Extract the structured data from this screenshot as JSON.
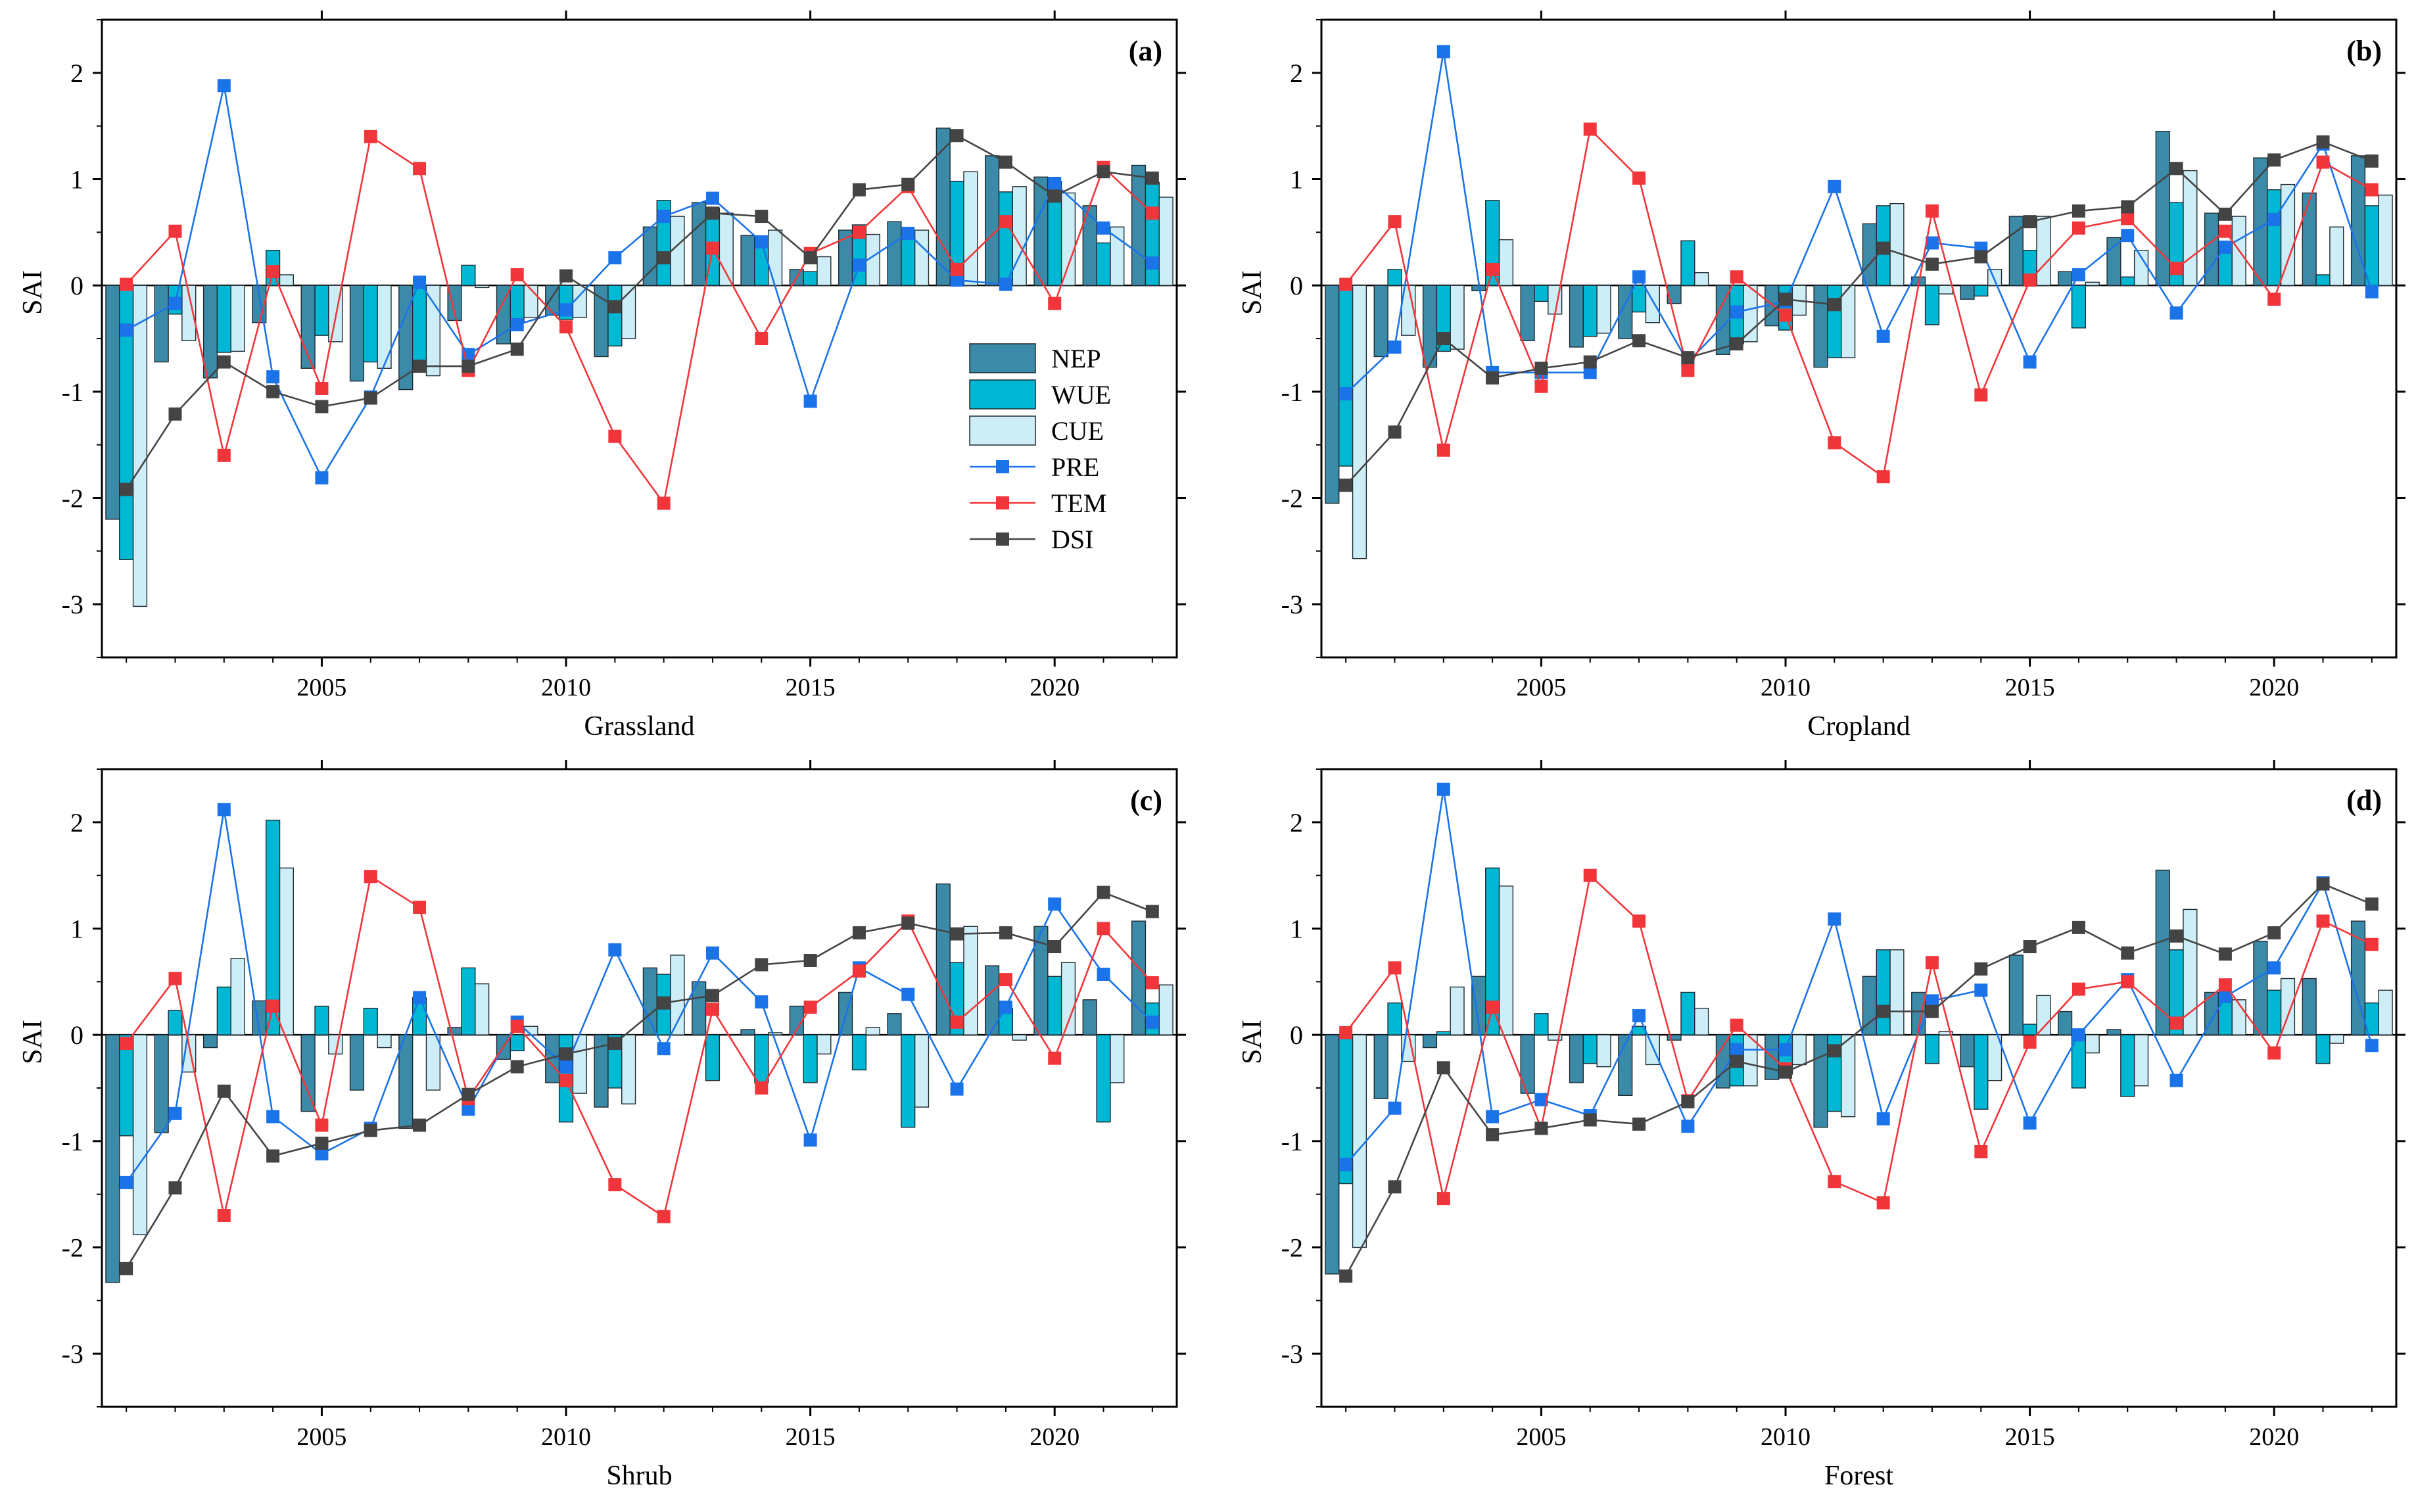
{
  "figure": {
    "legend_labels": [
      "NEP",
      "WUE",
      "CUE",
      "PRE",
      "TEM",
      "DSI"
    ]
  },
  "colors": {
    "NEP": "#3a8aa8",
    "WUE": "#00b8d4",
    "CUE": "#cdeef6",
    "PRE": "#1a73e8",
    "TEM": "#f0363a",
    "DSI": "#444444",
    "bar_edge": "#1f2a30"
  },
  "chart_data": [
    {
      "type": "bar+line",
      "panel": "(a)",
      "xlabel": "Grassland",
      "ylabel": "SAI",
      "xlim": [
        2000.5,
        2022.5
      ],
      "ylim": [
        -3.5,
        2.5
      ],
      "xticks": [
        2005,
        2010,
        2015,
        2020
      ],
      "yticks": [
        -3,
        -2,
        -1,
        0,
        1,
        2
      ],
      "legend_position": "center-right",
      "years": [
        2001,
        2002,
        2003,
        2004,
        2005,
        2006,
        2007,
        2008,
        2009,
        2010,
        2011,
        2012,
        2013,
        2014,
        2015,
        2016,
        2017,
        2018,
        2019,
        2020,
        2021,
        2022
      ],
      "series": [
        {
          "name": "NEP",
          "kind": "bar",
          "values": [
            -2.2,
            -0.72,
            -0.87,
            -0.35,
            -0.78,
            -0.9,
            -0.98,
            -0.33,
            -0.55,
            -0.28,
            -0.67,
            0.55,
            0.78,
            0.47,
            0.15,
            0.52,
            0.6,
            1.48,
            1.22,
            1.02,
            0.75,
            1.13
          ]
        },
        {
          "name": "WUE",
          "kind": "bar",
          "values": [
            -2.58,
            -0.27,
            -0.63,
            0.33,
            -0.47,
            -0.72,
            -0.75,
            0.19,
            -0.35,
            -0.32,
            -0.57,
            0.8,
            0.73,
            0.45,
            0.13,
            0.57,
            0.45,
            0.98,
            0.88,
            0.98,
            0.4,
            0.97
          ]
        },
        {
          "name": "CUE",
          "kind": "bar",
          "values": [
            -3.02,
            -0.52,
            -0.62,
            0.1,
            -0.53,
            -0.78,
            -0.85,
            -0.02,
            -0.3,
            -0.3,
            -0.5,
            0.65,
            0.68,
            0.52,
            0.27,
            0.48,
            0.52,
            1.07,
            0.93,
            0.87,
            0.55,
            0.83
          ]
        },
        {
          "name": "PRE",
          "kind": "line",
          "values": [
            -0.42,
            -0.17,
            1.88,
            -0.86,
            -1.81,
            -1.05,
            0.03,
            -0.65,
            -0.37,
            -0.23,
            0.26,
            0.65,
            0.82,
            0.41,
            -1.09,
            0.19,
            0.49,
            0.05,
            0.01,
            0.96,
            0.54,
            0.21
          ]
        },
        {
          "name": "TEM",
          "kind": "line",
          "values": [
            0.01,
            0.51,
            -1.6,
            0.13,
            -0.97,
            1.4,
            1.1,
            -0.8,
            0.1,
            -0.39,
            -1.42,
            -2.05,
            0.35,
            -0.5,
            0.3,
            0.5,
            0.93,
            0.15,
            0.6,
            -0.17,
            1.11,
            0.68
          ]
        },
        {
          "name": "DSI",
          "kind": "line",
          "values": [
            -1.92,
            -1.21,
            -0.72,
            -1.0,
            -1.14,
            -1.06,
            -0.76,
            -0.76,
            -0.6,
            0.09,
            -0.2,
            0.26,
            0.68,
            0.65,
            0.26,
            0.9,
            0.95,
            1.41,
            1.16,
            0.84,
            1.07,
            1.01
          ]
        }
      ]
    },
    {
      "type": "bar+line",
      "panel": "(b)",
      "xlabel": "Cropland",
      "ylabel": "SAI",
      "xlim": [
        2000.5,
        2022.5
      ],
      "ylim": [
        -3.5,
        2.5
      ],
      "xticks": [
        2005,
        2010,
        2015,
        2020
      ],
      "yticks": [
        -3,
        -2,
        -1,
        0,
        1,
        2
      ],
      "years": [
        2001,
        2002,
        2003,
        2004,
        2005,
        2006,
        2007,
        2008,
        2009,
        2010,
        2011,
        2012,
        2013,
        2014,
        2015,
        2016,
        2017,
        2018,
        2019,
        2020,
        2021,
        2022
      ],
      "series": [
        {
          "name": "NEP",
          "kind": "bar",
          "values": [
            -2.05,
            -0.67,
            -0.77,
            -0.05,
            -0.52,
            -0.58,
            -0.5,
            -0.17,
            -0.65,
            -0.38,
            -0.77,
            0.58,
            0.08,
            -0.13,
            0.65,
            0.13,
            0.45,
            1.45,
            0.68,
            1.2,
            0.87,
            1.22
          ]
        },
        {
          "name": "WUE",
          "kind": "bar",
          "values": [
            -1.7,
            0.15,
            -0.62,
            0.8,
            -0.15,
            -0.48,
            -0.25,
            0.42,
            -0.55,
            -0.42,
            -0.68,
            0.75,
            -0.37,
            -0.1,
            0.33,
            -0.4,
            0.08,
            0.78,
            0.33,
            0.9,
            0.1,
            0.75
          ]
        },
        {
          "name": "CUE",
          "kind": "bar",
          "values": [
            -2.57,
            -0.47,
            -0.6,
            0.43,
            -0.27,
            -0.45,
            -0.35,
            0.12,
            -0.53,
            -0.28,
            -0.68,
            0.77,
            -0.08,
            0.15,
            0.65,
            0.03,
            0.33,
            1.08,
            0.65,
            0.95,
            0.55,
            0.85
          ]
        },
        {
          "name": "PRE",
          "kind": "line",
          "values": [
            -1.02,
            -0.58,
            2.2,
            -0.82,
            -0.82,
            -0.82,
            0.08,
            -0.72,
            -0.25,
            -0.15,
            0.93,
            -0.48,
            0.4,
            0.35,
            -0.72,
            0.1,
            0.47,
            -0.26,
            0.36,
            0.62,
            1.33,
            -0.06
          ]
        },
        {
          "name": "TEM",
          "kind": "line",
          "values": [
            0.01,
            0.6,
            -1.55,
            0.15,
            -0.95,
            1.47,
            1.01,
            -0.8,
            0.08,
            -0.28,
            -1.48,
            -1.8,
            0.7,
            -1.03,
            0.05,
            0.54,
            0.63,
            0.16,
            0.51,
            -0.13,
            1.16,
            0.9
          ]
        },
        {
          "name": "DSI",
          "kind": "line",
          "values": [
            -1.88,
            -1.38,
            -0.5,
            -0.87,
            -0.78,
            -0.72,
            -0.52,
            -0.68,
            -0.55,
            -0.13,
            -0.18,
            0.35,
            0.2,
            0.27,
            0.6,
            0.7,
            0.74,
            1.1,
            0.67,
            1.18,
            1.35,
            1.17
          ]
        }
      ]
    },
    {
      "type": "bar+line",
      "panel": "(c)",
      "xlabel": "Shrub",
      "ylabel": "SAI",
      "xlim": [
        2000.5,
        2022.5
      ],
      "ylim": [
        -3.5,
        2.5
      ],
      "xticks": [
        2005,
        2010,
        2015,
        2020
      ],
      "yticks": [
        -3,
        -2,
        -1,
        0,
        1,
        2
      ],
      "years": [
        2001,
        2002,
        2003,
        2004,
        2005,
        2006,
        2007,
        2008,
        2009,
        2010,
        2011,
        2012,
        2013,
        2014,
        2015,
        2016,
        2017,
        2018,
        2019,
        2020,
        2021,
        2022
      ],
      "series": [
        {
          "name": "NEP",
          "kind": "bar",
          "values": [
            -2.33,
            -0.92,
            -0.12,
            0.32,
            -0.72,
            -0.52,
            -0.88,
            0.07,
            -0.23,
            -0.45,
            -0.68,
            0.63,
            0.5,
            0.05,
            0.27,
            0.4,
            0.2,
            1.42,
            0.65,
            1.02,
            0.33,
            1.07
          ]
        },
        {
          "name": "WUE",
          "kind": "bar",
          "values": [
            -0.95,
            0.23,
            0.45,
            2.02,
            0.27,
            0.25,
            0.35,
            0.63,
            -0.15,
            -0.82,
            -0.5,
            0.57,
            -0.43,
            -0.45,
            -0.45,
            -0.33,
            -0.87,
            0.68,
            0.25,
            0.55,
            -0.82,
            0.3
          ]
        },
        {
          "name": "CUE",
          "kind": "bar",
          "values": [
            -1.88,
            -0.35,
            0.72,
            1.57,
            -0.18,
            -0.12,
            -0.52,
            0.48,
            0.08,
            -0.55,
            -0.65,
            0.75,
            0.0,
            0.02,
            -0.18,
            0.07,
            -0.68,
            1.02,
            -0.05,
            0.68,
            -0.45,
            0.47
          ]
        },
        {
          "name": "PRE",
          "kind": "line",
          "values": [
            -1.39,
            -0.74,
            2.12,
            -0.77,
            -1.12,
            -0.88,
            0.35,
            -0.7,
            0.12,
            -0.3,
            0.8,
            -0.13,
            0.77,
            0.31,
            -0.99,
            0.63,
            0.38,
            -0.51,
            0.26,
            1.23,
            0.57,
            0.12
          ]
        },
        {
          "name": "TEM",
          "kind": "line",
          "values": [
            -0.08,
            0.53,
            -1.7,
            0.27,
            -0.85,
            1.49,
            1.2,
            -0.6,
            0.08,
            -0.43,
            -1.41,
            -1.71,
            0.24,
            -0.5,
            0.26,
            0.6,
            1.07,
            0.12,
            0.52,
            -0.22,
            1.0,
            0.49
          ]
        },
        {
          "name": "DSI",
          "kind": "line",
          "values": [
            -2.2,
            -1.44,
            -0.53,
            -1.14,
            -1.02,
            -0.9,
            -0.85,
            -0.56,
            -0.3,
            -0.18,
            -0.08,
            0.3,
            0.37,
            0.66,
            0.7,
            0.96,
            1.05,
            0.95,
            0.96,
            0.83,
            1.34,
            1.16
          ]
        }
      ]
    },
    {
      "type": "bar+line",
      "panel": "(d)",
      "xlabel": "Forest",
      "ylabel": "SAI",
      "xlim": [
        2000.5,
        2022.5
      ],
      "ylim": [
        -3.5,
        2.5
      ],
      "xticks": [
        2005,
        2010,
        2015,
        2020
      ],
      "yticks": [
        -3,
        -2,
        -1,
        0,
        1,
        2
      ],
      "years": [
        2001,
        2002,
        2003,
        2004,
        2005,
        2006,
        2007,
        2008,
        2009,
        2010,
        2011,
        2012,
        2013,
        2014,
        2015,
        2016,
        2017,
        2018,
        2019,
        2020,
        2021,
        2022
      ],
      "series": [
        {
          "name": "NEP",
          "kind": "bar",
          "values": [
            -2.25,
            -0.6,
            -0.12,
            0.55,
            -0.55,
            -0.45,
            -0.57,
            -0.05,
            -0.5,
            -0.42,
            -0.87,
            0.55,
            0.4,
            -0.3,
            0.75,
            0.22,
            0.05,
            1.55,
            0.4,
            0.88,
            0.53,
            1.07
          ]
        },
        {
          "name": "WUE",
          "kind": "bar",
          "values": [
            -1.4,
            0.3,
            0.03,
            1.57,
            0.2,
            -0.27,
            0.08,
            0.4,
            -0.48,
            -0.37,
            -0.72,
            0.8,
            -0.27,
            -0.7,
            0.1,
            -0.5,
            -0.58,
            0.8,
            0.35,
            0.42,
            -0.27,
            0.3
          ]
        },
        {
          "name": "CUE",
          "kind": "bar",
          "values": [
            -2.0,
            -0.25,
            0.45,
            1.4,
            -0.05,
            -0.3,
            -0.28,
            0.25,
            -0.48,
            -0.28,
            -0.77,
            0.8,
            0.03,
            -0.43,
            0.37,
            -0.17,
            -0.48,
            1.18,
            0.33,
            0.53,
            -0.08,
            0.42
          ]
        },
        {
          "name": "PRE",
          "kind": "line",
          "values": [
            -1.22,
            -0.69,
            2.31,
            -0.77,
            -0.61,
            -0.76,
            0.18,
            -0.86,
            -0.14,
            -0.14,
            1.09,
            -0.79,
            0.32,
            0.42,
            -0.83,
            0.0,
            0.52,
            -0.43,
            0.36,
            0.63,
            1.43,
            -0.1
          ]
        },
        {
          "name": "TEM",
          "kind": "line",
          "values": [
            0.02,
            0.63,
            -1.54,
            0.26,
            -0.88,
            1.5,
            1.07,
            -0.62,
            0.09,
            -0.32,
            -1.38,
            -1.58,
            0.68,
            -1.1,
            -0.07,
            0.43,
            0.5,
            0.11,
            0.47,
            -0.17,
            1.07,
            0.85
          ]
        },
        {
          "name": "DSI",
          "kind": "line",
          "values": [
            -2.27,
            -1.43,
            -0.31,
            -0.94,
            -0.88,
            -0.8,
            -0.84,
            -0.63,
            -0.25,
            -0.35,
            -0.15,
            0.22,
            0.22,
            0.62,
            0.83,
            1.01,
            0.77,
            0.93,
            0.76,
            0.96,
            1.42,
            1.23
          ]
        }
      ]
    }
  ]
}
